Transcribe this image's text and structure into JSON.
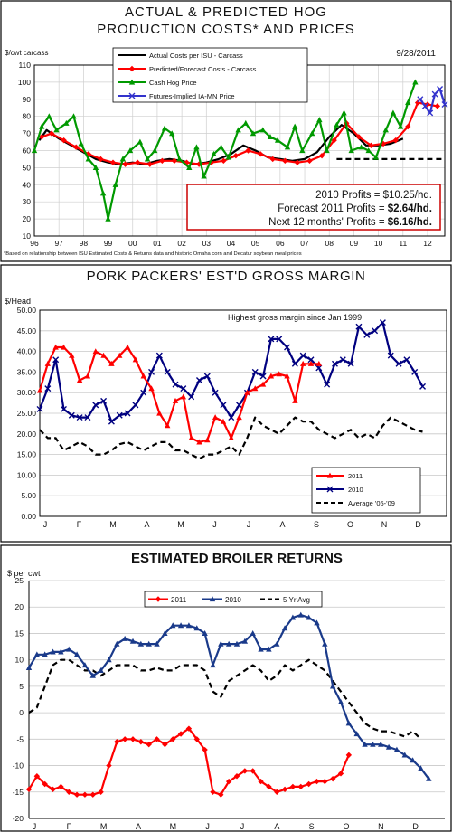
{
  "chart_data": [
    {
      "type": "line",
      "title": "ACTUAL & PREDICTED HOG",
      "subtitle": "PRODUCTION COSTS* AND PRICES",
      "ylabel": "$/cwt carcass",
      "date": "9/28/2011",
      "ylim": [
        10,
        110
      ],
      "yticks": [
        10,
        20,
        30,
        40,
        50,
        60,
        70,
        80,
        90,
        100,
        110
      ],
      "xlim": [
        1996,
        2012.7
      ],
      "xtick_labels": [
        "96",
        "97",
        "98",
        "99",
        "00",
        "01",
        "02",
        "03",
        "04",
        "05",
        "06",
        "07",
        "08",
        "09",
        "10",
        "11",
        "12"
      ],
      "footnote": "*Based on relationship between ISU Estimated Costs & Returns data and historic Omaha corn and Decatur soybean meal prices",
      "profits_box": [
        {
          "text": "2010 Profits = $10.25/hd.",
          "bold": ""
        },
        {
          "text": "Forecast 2011 Profits = ",
          "bold": "$2.64/hd."
        },
        {
          "text": "Next 12 months' Profits = ",
          "bold": "$6.16/hd."
        }
      ],
      "series": [
        {
          "name": "Actual Costs per ISU - Carcass",
          "color": "#000000",
          "marker": "none",
          "dash": false,
          "x": [
            1996.2,
            1996.5,
            1997,
            1997.5,
            1998,
            1998.5,
            1999,
            1999.5,
            2000,
            2000.5,
            2001,
            2001.5,
            2002,
            2002.5,
            2003,
            2003.5,
            2004,
            2004.5,
            2005,
            2005.5,
            2006,
            2006.5,
            2007,
            2007.5,
            2008,
            2008.5,
            2009,
            2009.5,
            2010,
            2010.5,
            2011
          ],
          "y": [
            66,
            72,
            67,
            63,
            59,
            55,
            53,
            52,
            53,
            52,
            54,
            55,
            54,
            52,
            53,
            55,
            58,
            63,
            60,
            56,
            55,
            54,
            55,
            59,
            68,
            75,
            70,
            63,
            63,
            64,
            67
          ]
        },
        {
          "name": "Predicted/Forecast Costs - Carcass",
          "color": "#ff0000",
          "marker": "diamond",
          "dash": false,
          "x": [
            1996.3,
            1996.7,
            1997.2,
            1997.7,
            1998.2,
            1998.7,
            1999.2,
            1999.7,
            2000.2,
            2000.7,
            2001.2,
            2001.7,
            2002.2,
            2002.7,
            2003.2,
            2003.7,
            2004.2,
            2004.7,
            2005.2,
            2005.7,
            2006.2,
            2006.7,
            2007.2,
            2007.7,
            2008.2,
            2008.7,
            2009.2,
            2009.7,
            2010.2,
            2010.7,
            2011.2,
            2011.6,
            2012,
            2012.4
          ],
          "y": [
            68,
            70,
            66,
            62,
            58,
            55,
            53,
            52,
            53,
            52,
            54,
            54,
            53,
            52,
            53,
            54,
            57,
            60,
            58,
            55,
            54,
            53,
            54,
            57,
            66,
            76,
            68,
            63,
            64,
            66,
            74,
            88,
            87,
            86
          ]
        },
        {
          "name": "Cash Hog Price",
          "color": "#009900",
          "marker": "triangle",
          "dash": false,
          "x": [
            1996,
            1996.3,
            1996.6,
            1996.9,
            1997.3,
            1997.6,
            1997.9,
            1998.2,
            1998.5,
            1998.8,
            1999,
            1999.3,
            1999.6,
            1999.9,
            2000.3,
            2000.6,
            2000.9,
            2001.3,
            2001.6,
            2001.9,
            2002.3,
            2002.6,
            2002.9,
            2003.3,
            2003.6,
            2003.9,
            2004.3,
            2004.6,
            2004.9,
            2005.3,
            2005.6,
            2005.9,
            2006.3,
            2006.6,
            2006.9,
            2007.3,
            2007.6,
            2007.9,
            2008.3,
            2008.6,
            2008.9,
            2009.3,
            2009.6,
            2009.9,
            2010.3,
            2010.6,
            2010.9,
            2011.2,
            2011.5
          ],
          "y": [
            60,
            74,
            80,
            72,
            76,
            80,
            64,
            55,
            50,
            35,
            20,
            40,
            55,
            60,
            65,
            55,
            60,
            73,
            70,
            55,
            50,
            62,
            45,
            58,
            62,
            56,
            72,
            76,
            70,
            72,
            68,
            66,
            62,
            74,
            60,
            70,
            78,
            60,
            75,
            82,
            60,
            62,
            60,
            56,
            72,
            82,
            74,
            88,
            100
          ]
        },
        {
          "name": "Futures-Implied IA-MN Price",
          "color": "#3333cc",
          "marker": "cross",
          "dash": false,
          "x": [
            2011.7,
            2011.9,
            2012.1,
            2012.3,
            2012.5,
            2012.7
          ],
          "y": [
            90,
            86,
            82,
            93,
            96,
            87
          ]
        },
        {
          "name": "",
          "color": "#000000",
          "marker": "none",
          "dash": true,
          "x": [
            2008.3,
            2012.7
          ],
          "y": [
            55,
            55
          ]
        }
      ]
    },
    {
      "type": "line",
      "title": "PORK PACKERS' EST'D GROSS MARGIN",
      "ylabel": "$/Head",
      "annotation": "Highest gross margin since Jan 1999",
      "ylim": [
        0,
        50
      ],
      "yticks": [
        "0.00",
        "5.00",
        "10.00",
        "15.00",
        "20.00",
        "25.00",
        "30.00",
        "35.00",
        "40.00",
        "45.00",
        "50.00"
      ],
      "months": [
        "J",
        "F",
        "M",
        "A",
        "M",
        "J",
        "J",
        "A",
        "S",
        "O",
        "N",
        "D"
      ],
      "xlim": [
        0,
        51
      ],
      "series": [
        {
          "name": "2011",
          "color": "#ff0000",
          "marker": "triangle",
          "dash": false,
          "values": [
            30.5,
            37,
            41,
            41,
            39,
            33,
            34,
            40,
            39,
            37,
            39,
            41,
            38,
            34,
            31,
            25,
            22,
            28,
            29,
            19,
            18,
            18.5,
            24,
            23,
            19,
            24,
            30,
            31,
            32,
            34,
            34.5,
            34,
            28,
            37,
            37,
            37
          ]
        },
        {
          "name": "2010",
          "color": "#000080",
          "marker": "cross",
          "dash": false,
          "values": [
            26,
            31,
            38,
            26,
            24.5,
            24,
            24,
            27,
            28,
            23,
            24.5,
            25,
            27,
            30,
            35,
            39,
            35,
            32,
            31,
            29,
            33,
            34,
            30,
            27,
            24,
            27,
            30,
            35,
            34,
            43,
            43,
            41,
            37,
            39,
            38,
            36,
            32,
            37,
            38,
            37,
            46,
            44,
            45,
            47,
            39,
            37,
            38,
            35,
            31.5
          ]
        },
        {
          "name": "Average '05-'09",
          "color": "#000000",
          "marker": "none",
          "dash": true,
          "values": [
            21,
            19,
            19,
            16,
            17,
            18,
            17,
            15,
            15,
            16,
            17.5,
            18,
            17,
            16,
            17,
            18,
            18,
            16,
            16,
            15,
            14,
            15,
            15,
            16,
            17,
            15,
            19,
            24,
            22,
            21,
            20,
            22,
            24,
            23,
            23,
            21,
            20,
            19,
            20,
            21,
            19,
            20,
            19,
            22,
            24,
            23,
            22,
            21,
            20.5
          ]
        }
      ]
    },
    {
      "type": "line",
      "title": "ESTIMATED BROILER RETURNS",
      "ylabel": "$ per cwt",
      "ylim": [
        -20,
        25
      ],
      "yticks": [
        -20,
        -15,
        -10,
        -5,
        0,
        5,
        10,
        15,
        20,
        25
      ],
      "months": [
        "J",
        "F",
        "M",
        "A",
        "M",
        "J",
        "J",
        "A",
        "S",
        "O",
        "N",
        "D"
      ],
      "xlim": [
        0,
        52
      ],
      "series": [
        {
          "name": "2011",
          "color": "#ff0000",
          "marker": "diamond",
          "dash": false,
          "values": [
            -14.5,
            -12,
            -13.5,
            -14.5,
            -14,
            -15,
            -15.5,
            -15.5,
            -15.5,
            -15,
            -10,
            -5.5,
            -5,
            -5,
            -5.5,
            -6,
            -5,
            -6,
            -5,
            -4,
            -3,
            -5,
            -7,
            -15,
            -15.5,
            -13,
            -12,
            -11,
            -11,
            -13,
            -14,
            -15,
            -14.5,
            -14,
            -14,
            -13.5,
            -13,
            -13,
            -12.5,
            -11.5,
            -8
          ]
        },
        {
          "name": "2010",
          "color": "#1a3a8a",
          "marker": "triangle",
          "dash": false,
          "values": [
            8.5,
            11,
            11,
            11.5,
            11.5,
            12,
            11,
            9,
            7,
            8,
            10,
            13,
            14,
            13.5,
            13,
            13,
            13,
            15,
            16.5,
            16.5,
            16.5,
            16,
            15,
            9,
            13,
            13,
            13,
            13.5,
            15,
            12,
            12,
            13,
            16,
            18,
            18.5,
            18,
            17,
            13,
            5,
            2,
            -2,
            -4,
            -6,
            -6,
            -6,
            -6.5,
            -7,
            -8,
            -9,
            -10.5,
            -12.5
          ]
        },
        {
          "name": "5 Yr Avg",
          "color": "#000000",
          "marker": "none",
          "dash": true,
          "values": [
            0,
            1,
            5,
            9,
            10,
            10,
            9,
            8,
            8,
            7,
            8,
            9,
            9,
            9,
            8,
            8,
            8.5,
            8,
            8,
            9,
            9,
            9,
            8,
            4,
            3,
            6,
            7,
            8,
            9,
            8,
            6,
            7,
            9,
            8,
            9,
            10,
            9,
            8,
            6,
            4,
            2,
            0,
            -2,
            -3,
            -3.5,
            -3.5,
            -4,
            -4.5,
            -3.5,
            -5
          ]
        }
      ]
    }
  ]
}
